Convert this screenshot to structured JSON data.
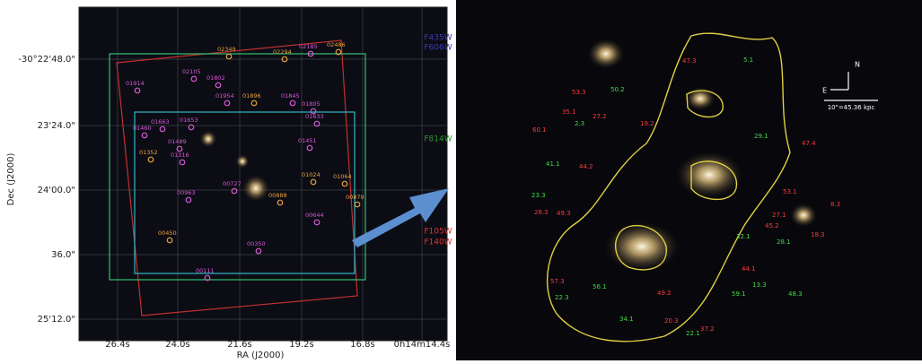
{
  "left_panel": {
    "x_axis": {
      "title": "RA (J2000)",
      "ticks": [
        "26.4s",
        "24.0s",
        "21.6s",
        "19.2s",
        "16.8s",
        "0h14m14.4s"
      ]
    },
    "y_axis": {
      "title": "Dec (J2000)",
      "ticks": [
        "-30°22'48.0\"",
        "23'24.0\"",
        "24'00.0\"",
        "36.0\"",
        "25'12.0\""
      ]
    },
    "objects": [
      {
        "label": "01914",
        "color": "#d65ad6"
      },
      {
        "label": "02105",
        "color": "#d65ad6"
      },
      {
        "label": "01802",
        "color": "#d65ad6"
      },
      {
        "label": "01954",
        "color": "#d65ad6"
      },
      {
        "label": "01896",
        "color": "#e8a040"
      },
      {
        "label": "01845",
        "color": "#d65ad6"
      },
      {
        "label": "01805",
        "color": "#d65ad6"
      },
      {
        "label": "01633",
        "color": "#d65ad6"
      },
      {
        "label": "01653",
        "color": "#d65ad6"
      },
      {
        "label": "01663",
        "color": "#d65ad6"
      },
      {
        "label": "01460",
        "color": "#d65ad6"
      },
      {
        "label": "01489",
        "color": "#d65ad6"
      },
      {
        "label": "01451",
        "color": "#d65ad6"
      },
      {
        "label": "01352",
        "color": "#e8a040"
      },
      {
        "label": "01316",
        "color": "#d65ad6"
      },
      {
        "label": "01024",
        "color": "#e8a040"
      },
      {
        "label": "01064",
        "color": "#e8a040"
      },
      {
        "label": "00888",
        "color": "#e8a040"
      },
      {
        "label": "00879",
        "color": "#e8a040"
      },
      {
        "label": "00727",
        "color": "#d65ad6"
      },
      {
        "label": "00963",
        "color": "#d65ad6"
      },
      {
        "label": "00644",
        "color": "#d65ad6"
      },
      {
        "label": "00450",
        "color": "#e8a040"
      },
      {
        "label": "00350",
        "color": "#d65ad6"
      },
      {
        "label": "00111",
        "color": "#d65ad6"
      },
      {
        "label": "02294",
        "color": "#e8a040"
      },
      {
        "label": "02349",
        "color": "#e8a040"
      },
      {
        "label": "02185",
        "color": "#d65ad6"
      },
      {
        "label": "02486",
        "color": "#e8a040"
      }
    ]
  },
  "filters": [
    {
      "label": "F435W",
      "color": "#3a3ab8"
    },
    {
      "label": "F606W",
      "color": "#3a3ab8"
    },
    {
      "label": "F814W",
      "color": "#2e9a2e"
    },
    {
      "label": "F105W",
      "color": "#e03030"
    },
    {
      "label": "F140W",
      "color": "#e03030"
    }
  ],
  "right_panel": {
    "compass": {
      "north": "N",
      "east": "E"
    },
    "scale_bar": "10\"=45.36 kpc",
    "labels": [
      {
        "text": "53.3",
        "color": "#ff3a3a"
      },
      {
        "text": "50.2",
        "color": "#44dd44"
      },
      {
        "text": "47.3",
        "color": "#ff3a3a"
      },
      {
        "text": "5.1",
        "color": "#44dd44"
      },
      {
        "text": "35.1",
        "color": "#ff3a3a"
      },
      {
        "text": "27.2",
        "color": "#ff3a3a"
      },
      {
        "text": "19.2",
        "color": "#ff3a3a"
      },
      {
        "text": "29.1",
        "color": "#44dd44"
      },
      {
        "text": "47.4",
        "color": "#ff3a3a"
      },
      {
        "text": "41.1",
        "color": "#44dd44"
      },
      {
        "text": "44.2",
        "color": "#ff3a3a"
      },
      {
        "text": "23.3",
        "color": "#44dd44"
      },
      {
        "text": "26.3",
        "color": "#ff3a3a"
      },
      {
        "text": "49.3",
        "color": "#ff3a3a"
      },
      {
        "text": "53.1",
        "color": "#ff3a3a"
      },
      {
        "text": "27.1",
        "color": "#ff3a3a"
      },
      {
        "text": "45.2",
        "color": "#ff3a3a"
      },
      {
        "text": "18.3",
        "color": "#ff3a3a"
      },
      {
        "text": "28.1",
        "color": "#44dd44"
      },
      {
        "text": "32.1",
        "color": "#44dd44"
      },
      {
        "text": "44.1",
        "color": "#ff3a3a"
      },
      {
        "text": "57.3",
        "color": "#ff3a3a"
      },
      {
        "text": "22.3",
        "color": "#44dd44"
      },
      {
        "text": "49.2",
        "color": "#ff3a3a"
      },
      {
        "text": "48.3",
        "color": "#44dd44"
      },
      {
        "text": "59.1",
        "color": "#44dd44"
      },
      {
        "text": "13.3",
        "color": "#44dd44"
      },
      {
        "text": "34.1",
        "color": "#44dd44"
      },
      {
        "text": "20.3",
        "color": "#ff3a3a"
      },
      {
        "text": "22.1",
        "color": "#44dd44"
      },
      {
        "text": "37.2",
        "color": "#ff3a3a"
      },
      {
        "text": "56.1",
        "color": "#44dd44"
      },
      {
        "text": "60.1",
        "color": "#ff3a3a"
      },
      {
        "text": "2.3",
        "color": "#44dd44"
      },
      {
        "text": "8.3",
        "color": "#ff3a3a"
      }
    ]
  }
}
